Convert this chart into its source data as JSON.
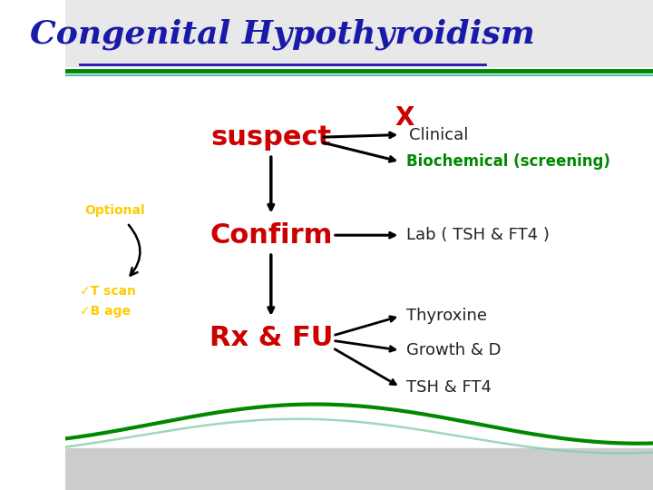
{
  "title": "Congenital Hypothyroidism",
  "title_color": "#1a1aaa",
  "title_fontsize": 26,
  "slide_bg": "#ffffff",
  "suspect_text": "suspect",
  "confirm_text": "Confirm",
  "rx_text": "Rx & FU",
  "red_color": "#cc0000",
  "clinical_text": "Clinical",
  "biochemical_text": "Biochemical (screening)",
  "biochem_color": "#008800",
  "lab_text": "Lab ( TSH & FT4 )",
  "thyroxine_text": "Thyroxine",
  "growth_text": "Growth & D",
  "tsh_text": "TSH & FT4",
  "optional_text": "Optional",
  "optional_color": "#ffcc00",
  "tscan_text": "✓T scan",
  "bage_text": "✓B age",
  "yellow_color": "#ffcc00",
  "x_mark_color": "#cc0000",
  "header_line_color": "#008800",
  "wave_color": "#008800"
}
